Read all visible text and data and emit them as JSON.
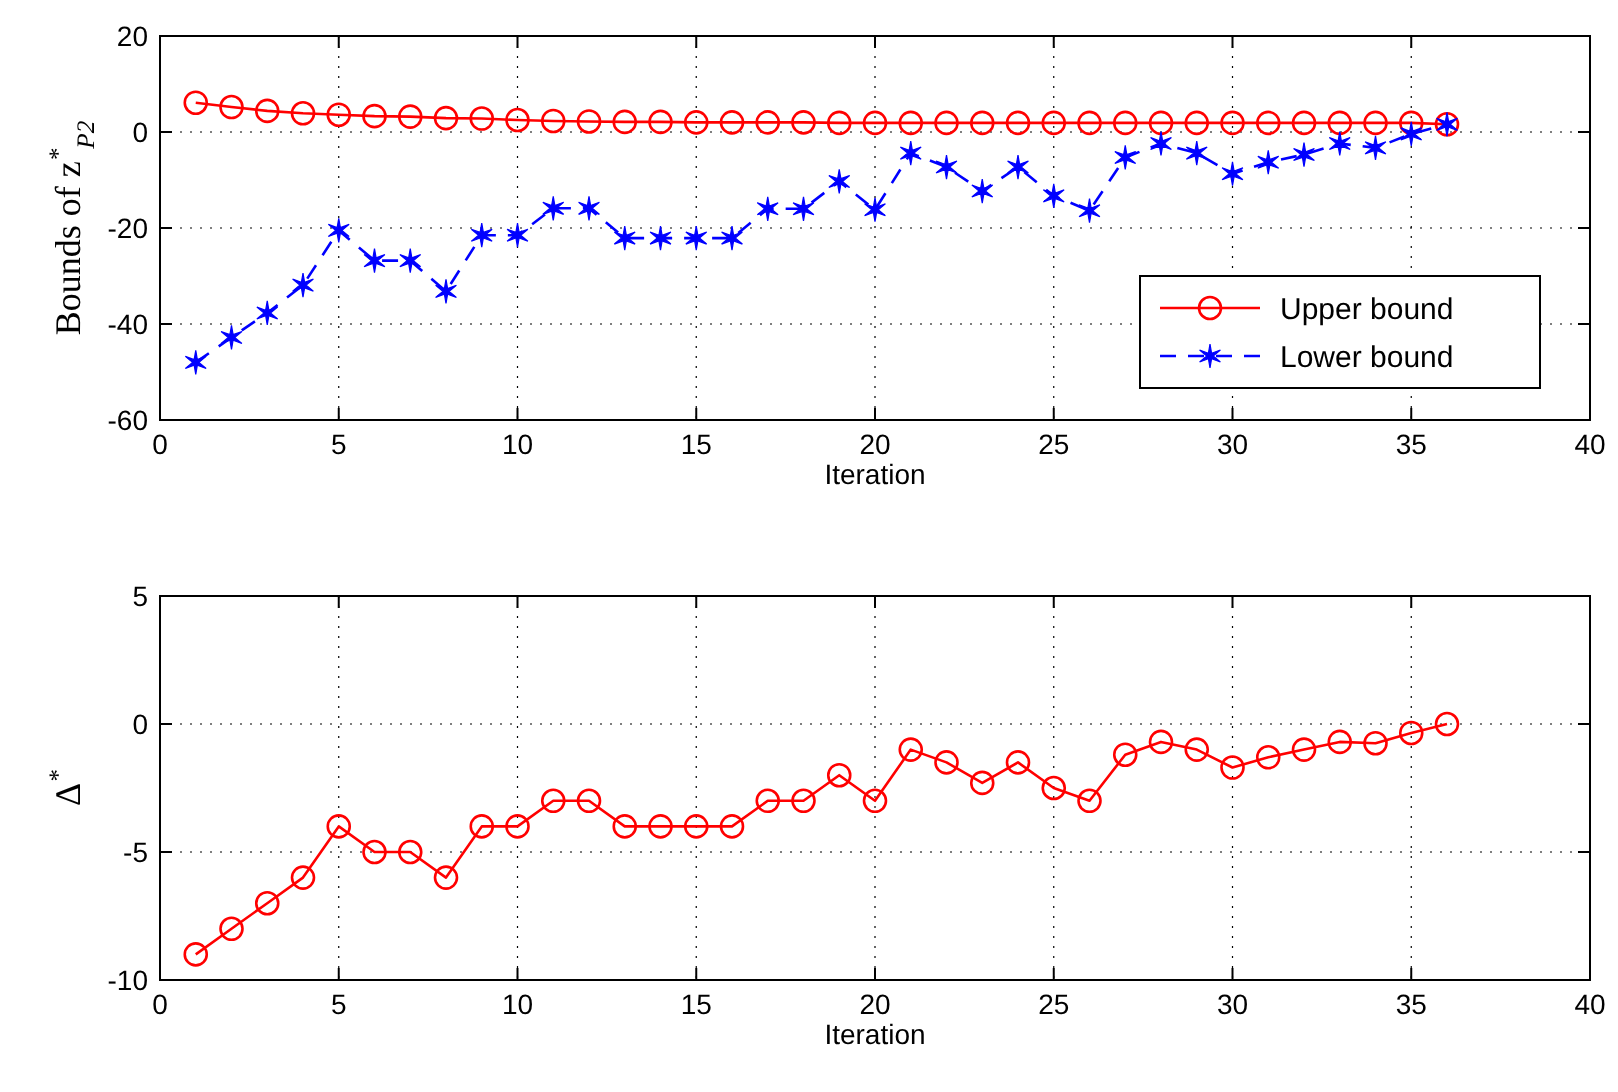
{
  "chart_data": [
    {
      "type": "line",
      "ylabel": "Bounds of z$^{*}$$_{P2}$",
      "xlabel": "Iteration",
      "x": [
        1,
        2,
        3,
        4,
        5,
        6,
        7,
        8,
        9,
        10,
        11,
        12,
        13,
        14,
        15,
        16,
        17,
        18,
        19,
        20,
        21,
        22,
        23,
        24,
        25,
        26,
        27,
        28,
        29,
        30,
        31,
        32,
        33,
        34,
        35,
        36
      ],
      "series": [
        {
          "name": "Upper bound",
          "color": "#ff0000",
          "marker": "circle",
          "line_style": "solid",
          "values": [
            6.1,
            5.2,
            4.4,
            3.9,
            3.6,
            3.3,
            3.2,
            2.9,
            2.8,
            2.5,
            2.3,
            2.2,
            2.1,
            2.1,
            2.0,
            2.0,
            2.0,
            2.0,
            1.9,
            1.9,
            1.9,
            1.9,
            1.9,
            1.9,
            1.9,
            1.9,
            1.9,
            1.9,
            1.9,
            1.9,
            1.9,
            1.9,
            1.9,
            1.9,
            1.9,
            1.6
          ]
        },
        {
          "name": "Lower bound",
          "color": "#0000ff",
          "marker": "cross",
          "line_style": "dashed",
          "values": [
            -48,
            -42.8,
            -37.7,
            -31.9,
            -20.5,
            -26.8,
            -26.8,
            -33.2,
            -21.5,
            -21.5,
            -15.9,
            -15.9,
            -22.1,
            -22.1,
            -22.1,
            -22.1,
            -16,
            -16,
            -10.3,
            -16.2,
            -4.4,
            -7.3,
            -12.3,
            -7.3,
            -13.3,
            -16.4,
            -5.3,
            -2.4,
            -4.4,
            -8.7,
            -6.3,
            -4.7,
            -2.4,
            -3.3,
            -0.4,
            1.6
          ]
        }
      ],
      "xlim": [
        0,
        40
      ],
      "xticks": [
        0,
        5,
        10,
        15,
        20,
        25,
        30,
        35,
        40
      ],
      "ylim": [
        -60,
        20
      ],
      "yticks": [
        -60,
        -40,
        -20,
        0,
        20
      ],
      "grid": true,
      "legend": "right"
    },
    {
      "type": "line",
      "ylabel": "Δ$^{*}$",
      "xlabel": "Iteration",
      "x": [
        1,
        2,
        3,
        4,
        5,
        6,
        7,
        8,
        9,
        10,
        11,
        12,
        13,
        14,
        15,
        16,
        17,
        18,
        19,
        20,
        21,
        22,
        23,
        24,
        25,
        26,
        27,
        28,
        29,
        30,
        31,
        32,
        33,
        34,
        35,
        36
      ],
      "series": [
        {
          "color": "#ff0000",
          "marker": "circle",
          "line_style": "solid",
          "values": [
            -9,
            -8,
            -7,
            -6,
            -4,
            -5,
            -5,
            -6,
            -4,
            -4,
            -3,
            -3,
            -4,
            -4,
            -4,
            -4,
            -3,
            -3,
            -2,
            -3,
            -1,
            -1.5,
            -2.3,
            -1.5,
            -2.5,
            -3,
            -1.2,
            -0.7,
            -1,
            -1.7,
            -1.3,
            -1,
            -0.7,
            -0.75,
            -0.35,
            0
          ]
        }
      ],
      "xlim": [
        0,
        40
      ],
      "xticks": [
        0,
        5,
        10,
        15,
        20,
        25,
        30,
        35,
        40
      ],
      "ylim": [
        -10,
        5
      ],
      "yticks": [
        -10,
        -5,
        0,
        5
      ],
      "grid": true,
      "legend": false
    }
  ]
}
